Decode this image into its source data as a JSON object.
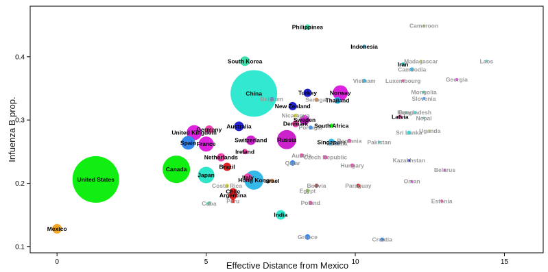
{
  "chart_data": {
    "type": "scatter",
    "title": "",
    "xlabel": "Effective Distance from Mexico",
    "ylabel": "Infuenza B prop.",
    "xlim": [
      -0.9,
      16.3
    ],
    "ylim": [
      0.09,
      0.48
    ],
    "xticks": [
      0,
      5,
      10,
      15
    ],
    "yticks": [
      0.1,
      0.2,
      0.3,
      0.4
    ],
    "grid": false,
    "legend": "none",
    "points": [
      {
        "label": "Mexico",
        "x": 0.0,
        "y": 0.128,
        "size": 7,
        "color": "#f5a623",
        "label_color": "#000000"
      },
      {
        "label": "United States",
        "x": 1.3,
        "y": 0.206,
        "size": 34,
        "color": "#11ee11",
        "label_color": "#000000"
      },
      {
        "label": "Canada",
        "x": 4.0,
        "y": 0.222,
        "size": 20,
        "color": "#11ee11",
        "label_color": "#000000"
      },
      {
        "label": "Japan",
        "x": 5.0,
        "y": 0.213,
        "size": 12,
        "color": "#2ee6c8",
        "label_color": "#000000"
      },
      {
        "label": "China",
        "x": 6.6,
        "y": 0.342,
        "size": 34,
        "color": "#33e8d0",
        "label_color": "#000000"
      },
      {
        "label": "South Korea",
        "x": 6.3,
        "y": 0.393,
        "size": 7,
        "color": "#3ddcaa",
        "label_color": "#000000"
      },
      {
        "label": "Philippines",
        "x": 8.4,
        "y": 0.447,
        "size": 4,
        "color": "#3ddcaa",
        "label_color": "#000000"
      },
      {
        "label": "Cameroon",
        "x": 12.3,
        "y": 0.449,
        "size": 2,
        "color": "#88cc44",
        "label_color": "#999999"
      },
      {
        "label": "Indonesia",
        "x": 10.3,
        "y": 0.416,
        "size": 3,
        "color": "#33b8e8",
        "label_color": "#000000"
      },
      {
        "label": "Laos",
        "x": 14.4,
        "y": 0.393,
        "size": 2,
        "color": "#3ddcdd",
        "label_color": "#999999"
      },
      {
        "label": "Madagascar",
        "x": 12.2,
        "y": 0.393,
        "size": 2,
        "color": "#dddd44",
        "label_color": "#999999"
      },
      {
        "label": "Iran",
        "x": 11.6,
        "y": 0.388,
        "size": 3,
        "color": "#3ddcdd",
        "label_color": "#000000"
      },
      {
        "label": "Cambodia",
        "x": 11.9,
        "y": 0.38,
        "size": 3,
        "color": "#33b8e8",
        "label_color": "#999999"
      },
      {
        "label": "Vietnam",
        "x": 10.3,
        "y": 0.362,
        "size": 3,
        "color": "#33b8e8",
        "label_color": "#999999"
      },
      {
        "label": "Luxembourg",
        "x": 11.6,
        "y": 0.362,
        "size": 2,
        "color": "#ee44aa",
        "label_color": "#999999"
      },
      {
        "label": "Georgia",
        "x": 13.4,
        "y": 0.364,
        "size": 2,
        "color": "#cc44cc",
        "label_color": "#999999"
      },
      {
        "label": "Mongolia",
        "x": 12.3,
        "y": 0.344,
        "size": 2,
        "color": "#3ddcaa",
        "label_color": "#999999"
      },
      {
        "label": "Slovenia",
        "x": 12.3,
        "y": 0.334,
        "size": 2,
        "color": "#3388ee",
        "label_color": "#999999"
      },
      {
        "label": "Turkey",
        "x": 8.4,
        "y": 0.343,
        "size": 6,
        "color": "#2222cc",
        "label_color": "#000000"
      },
      {
        "label": "Norway",
        "x": 9.5,
        "y": 0.343,
        "size": 11,
        "color": "#dd22dd",
        "label_color": "#000000"
      },
      {
        "label": "Senegal",
        "x": 8.7,
        "y": 0.332,
        "size": 3,
        "color": "#dd8844",
        "label_color": "#999999"
      },
      {
        "label": "Thailand",
        "x": 9.4,
        "y": 0.331,
        "size": 5,
        "color": "#33b8e8",
        "label_color": "#000000"
      },
      {
        "label": "Belgium",
        "x": 7.2,
        "y": 0.333,
        "size": 3,
        "color": "#3388ee",
        "label_color": "#999999"
      },
      {
        "label": "New Zealand",
        "x": 7.9,
        "y": 0.322,
        "size": 6,
        "color": "#2222cc",
        "label_color": "#000000"
      },
      {
        "label": "Kenya",
        "x": 11.7,
        "y": 0.312,
        "size": 2,
        "color": "#3ddcaa",
        "label_color": "#999999"
      },
      {
        "label": "Bangladesh",
        "x": 12.0,
        "y": 0.312,
        "size": 2,
        "color": "#3ddcdd",
        "label_color": "#999999"
      },
      {
        "label": "Nepal",
        "x": 12.3,
        "y": 0.303,
        "size": 2,
        "color": "#3ddcdd",
        "label_color": "#999999"
      },
      {
        "label": "Nicaragua",
        "x": 8.0,
        "y": 0.307,
        "size": 3,
        "color": "#dddd44",
        "label_color": "#999999"
      },
      {
        "label": "Sweden",
        "x": 8.3,
        "y": 0.3,
        "size": 7,
        "color": "#cc22cc",
        "label_color": "#000000"
      },
      {
        "label": "Denmark",
        "x": 8.0,
        "y": 0.294,
        "size": 5,
        "color": "#ee44aa",
        "label_color": "#000000"
      },
      {
        "label": "Latvia",
        "x": 11.5,
        "y": 0.305,
        "size": 3,
        "color": "#ee44aa",
        "label_color": "#000000"
      },
      {
        "label": "Portugal",
        "x": 8.5,
        "y": 0.288,
        "size": 3,
        "color": "#3388ee",
        "label_color": "#999999"
      },
      {
        "label": "South Africa",
        "x": 9.2,
        "y": 0.291,
        "size": 3,
        "color": "#11ee11",
        "label_color": "#000000"
      },
      {
        "label": "Uganda",
        "x": 12.5,
        "y": 0.283,
        "size": 2,
        "color": "#dddd44",
        "label_color": "#999999"
      },
      {
        "label": "Sri Lanka",
        "x": 11.8,
        "y": 0.28,
        "size": 3,
        "color": "#3ddcdd",
        "label_color": "#999999"
      },
      {
        "label": "Australia",
        "x": 6.1,
        "y": 0.29,
        "size": 7,
        "color": "#2222cc",
        "label_color": "#000000"
      },
      {
        "label": "Germany",
        "x": 5.1,
        "y": 0.285,
        "size": 6,
        "color": "#ee44aa",
        "label_color": "#000000"
      },
      {
        "label": "United Kingdom",
        "x": 4.6,
        "y": 0.28,
        "size": 11,
        "color": "#dd22dd",
        "label_color": "#000000"
      },
      {
        "label": "Russia",
        "x": 7.7,
        "y": 0.269,
        "size": 14,
        "color": "#cc22cc",
        "label_color": "#000000"
      },
      {
        "label": "Switzerland",
        "x": 6.5,
        "y": 0.268,
        "size": 7,
        "color": "#cc22cc",
        "label_color": "#000000"
      },
      {
        "label": "Singapore",
        "x": 9.2,
        "y": 0.265,
        "size": 5,
        "color": "#33b8e8",
        "label_color": "#000000"
      },
      {
        "label": "Croatia",
        "x": 9.4,
        "y": 0.263,
        "size": 3,
        "color": "#3388ee",
        "label_color": "#999999"
      },
      {
        "label": "Romania",
        "x": 9.8,
        "y": 0.267,
        "size": 3,
        "color": "#ee44aa",
        "label_color": "#999999"
      },
      {
        "label": "Pakistan",
        "x": 10.8,
        "y": 0.265,
        "size": 2,
        "color": "#3ddcdd",
        "label_color": "#999999"
      },
      {
        "label": "Spain",
        "x": 4.4,
        "y": 0.264,
        "size": 10,
        "color": "#3388ee",
        "label_color": "#000000"
      },
      {
        "label": "France",
        "x": 5.0,
        "y": 0.262,
        "size": 11,
        "color": "#dd22dd",
        "label_color": "#000000"
      },
      {
        "label": "Ireland",
        "x": 6.3,
        "y": 0.25,
        "size": 4,
        "color": "#ee44aa",
        "label_color": "#000000"
      },
      {
        "label": "Austria",
        "x": 8.2,
        "y": 0.244,
        "size": 3,
        "color": "#ee44aa",
        "label_color": "#999999"
      },
      {
        "label": "Czech Republic",
        "x": 9.0,
        "y": 0.241,
        "size": 3,
        "color": "#ee44aa",
        "label_color": "#999999"
      },
      {
        "label": "Netherlands",
        "x": 5.5,
        "y": 0.241,
        "size": 6,
        "color": "#ee44aa",
        "label_color": "#000000"
      },
      {
        "label": "Kazakhstan",
        "x": 11.8,
        "y": 0.236,
        "size": 2,
        "color": "#2222cc",
        "label_color": "#999999"
      },
      {
        "label": "Qatar",
        "x": 7.9,
        "y": 0.232,
        "size": 4,
        "color": "#3388ee",
        "label_color": "#999999"
      },
      {
        "label": "Hungary",
        "x": 9.9,
        "y": 0.228,
        "size": 3,
        "color": "#ee44aa",
        "label_color": "#999999"
      },
      {
        "label": "Brazil",
        "x": 5.7,
        "y": 0.226,
        "size": 6,
        "color": "#dd2222",
        "label_color": "#000000"
      },
      {
        "label": "Belarus",
        "x": 13.0,
        "y": 0.221,
        "size": 2,
        "color": "#cc44cc",
        "label_color": "#999999"
      },
      {
        "label": "Italy",
        "x": 6.4,
        "y": 0.209,
        "size": 6,
        "color": "#ee44aa",
        "label_color": "#000000"
      },
      {
        "label": "Hong Kong",
        "x": 6.6,
        "y": 0.205,
        "size": 14,
        "color": "#33b8e8",
        "label_color": "#000000"
      },
      {
        "label": "Israel",
        "x": 7.2,
        "y": 0.204,
        "size": 3,
        "color": "#dd8844",
        "label_color": "#000000"
      },
      {
        "label": "Oman",
        "x": 11.9,
        "y": 0.203,
        "size": 2,
        "color": "#cc44cc",
        "label_color": "#999999"
      },
      {
        "label": "Costa Rica",
        "x": 5.7,
        "y": 0.196,
        "size": 3,
        "color": "#dddd44",
        "label_color": "#999999"
      },
      {
        "label": "Bolivia",
        "x": 8.7,
        "y": 0.196,
        "size": 3,
        "color": "#dd2222",
        "label_color": "#999999"
      },
      {
        "label": "Paraguay",
        "x": 10.1,
        "y": 0.196,
        "size": 3,
        "color": "#dd2222",
        "label_color": "#999999"
      },
      {
        "label": "Egypt",
        "x": 8.4,
        "y": 0.188,
        "size": 3,
        "color": "#88cc44",
        "label_color": "#999999"
      },
      {
        "label": "Chile",
        "x": 5.9,
        "y": 0.187,
        "size": 5,
        "color": "#dd2222",
        "label_color": "#000000"
      },
      {
        "label": "Argentina",
        "x": 5.9,
        "y": 0.181,
        "size": 6,
        "color": "#dd2222",
        "label_color": "#000000"
      },
      {
        "label": "Peru",
        "x": 5.9,
        "y": 0.172,
        "size": 3,
        "color": "#dd2222",
        "label_color": "#999999"
      },
      {
        "label": "Cuba",
        "x": 5.1,
        "y": 0.168,
        "size": 3,
        "color": "#3ddcaa",
        "label_color": "#999999"
      },
      {
        "label": "Poland",
        "x": 8.5,
        "y": 0.169,
        "size": 3,
        "color": "#ee44aa",
        "label_color": "#999999"
      },
      {
        "label": "Estonia",
        "x": 12.9,
        "y": 0.172,
        "size": 2,
        "color": "#ee44aa",
        "label_color": "#999999"
      },
      {
        "label": "India",
        "x": 7.5,
        "y": 0.15,
        "size": 7,
        "color": "#33e8d0",
        "label_color": "#000000"
      },
      {
        "label": "Greece",
        "x": 8.4,
        "y": 0.115,
        "size": 4,
        "color": "#3388ee",
        "label_color": "#999999"
      },
      {
        "label": "Croatia",
        "x": 10.9,
        "y": 0.111,
        "size": 3,
        "color": "#3388ee",
        "label_color": "#999999"
      }
    ]
  }
}
